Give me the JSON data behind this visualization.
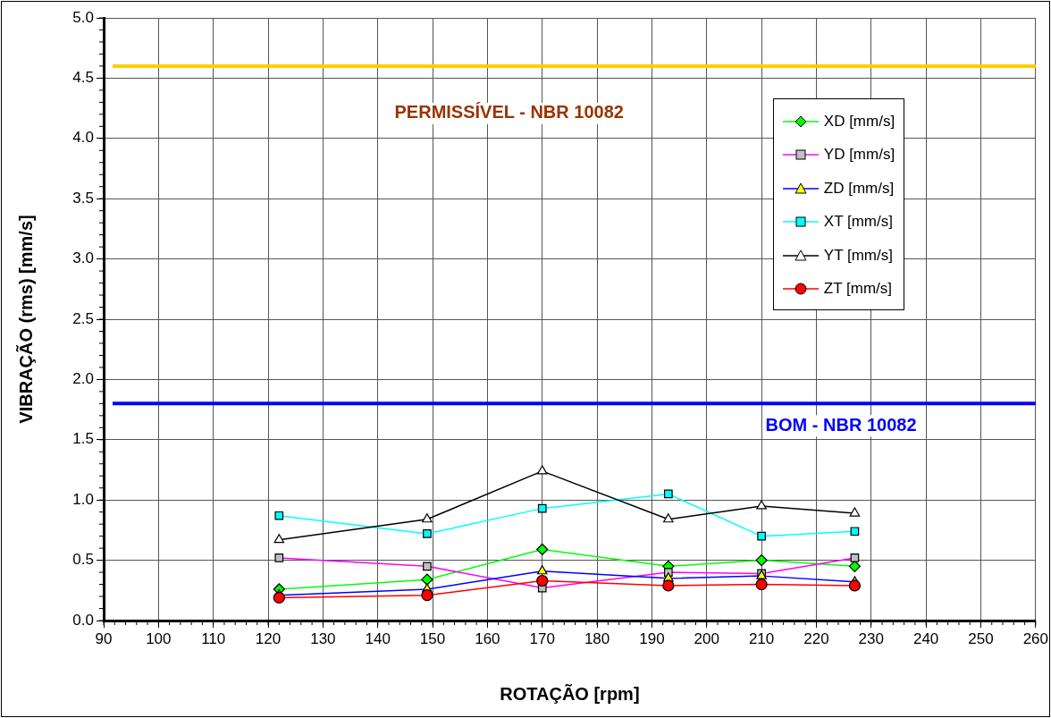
{
  "chart_data": {
    "type": "line",
    "xlabel": "ROTAÇÃO [rpm]",
    "ylabel": "VIBRAÇÃO (rms) [mm/s]",
    "x": [
      122,
      149,
      170,
      193,
      210,
      227
    ],
    "series": [
      {
        "name": "XD [mm/s]",
        "color": "#00ff00",
        "marker": "diamond",
        "colors": [
          "#00ff00",
          "#00ff00",
          "#00ff00",
          "#00ff00",
          "#00ff00",
          "#00ff00"
        ],
        "values": [
          0.26,
          0.34,
          0.59,
          0.45,
          0.5,
          0.45
        ]
      },
      {
        "name": "YD [mm/s]",
        "color": "#ff00ff",
        "marker": "square",
        "colors": [
          "#c0c0c0",
          "#c0c0c0",
          "#c0c0c0",
          "#c0c0c0",
          "#c0c0c0",
          "#c0c0c0"
        ],
        "values": [
          0.52,
          0.45,
          0.27,
          0.4,
          0.39,
          0.52
        ]
      },
      {
        "name": "ZD [mm/s]",
        "color": "#0000ff",
        "marker": "triangle",
        "colors": [
          "#ffff00",
          "#ffff00",
          "#ffff00",
          "#ffff00",
          "#ffff00",
          "#ffff00"
        ],
        "values": [
          0.21,
          0.26,
          0.41,
          0.35,
          0.37,
          0.32
        ]
      },
      {
        "name": "XT [mm/s]",
        "color": "#00ffff",
        "marker": "square",
        "colors": [
          "#00ffff",
          "#00ffff",
          "#00ffff",
          "#00ffff",
          "#00ffff",
          "#00ffff"
        ],
        "values": [
          0.87,
          0.72,
          0.93,
          1.05,
          0.7,
          0.74
        ]
      },
      {
        "name": "YT [mm/s]",
        "color": "#000000",
        "marker": "triangle",
        "colors": [
          "#ffffff",
          "#ffffff",
          "#ffffff",
          "#ffffff",
          "#ffffff",
          "#ffffff"
        ],
        "values": [
          0.67,
          0.84,
          1.24,
          0.84,
          0.95,
          0.89
        ]
      },
      {
        "name": "ZT [mm/s]",
        "color": "#ff0000",
        "marker": "circle",
        "colors": [
          "#ff0000",
          "#ff0000",
          "#ff0000",
          "#ff0000",
          "#ff0000",
          "#ff0000"
        ],
        "values": [
          0.19,
          0.21,
          0.33,
          0.29,
          0.3,
          0.29
        ]
      }
    ],
    "ref_lines": [
      {
        "axis": "y",
        "value": 4.6,
        "label": "PERMISSÍVEL - NBR 10082",
        "color": "#ffcc00"
      },
      {
        "axis": "y",
        "value": 1.8,
        "label": "BOM - NBR 10082",
        "color": "#0000ff"
      }
    ],
    "xlim": [
      90,
      260
    ],
    "xticks": [
      90,
      100,
      110,
      120,
      130,
      140,
      150,
      160,
      170,
      180,
      190,
      200,
      210,
      220,
      230,
      240,
      250,
      260
    ],
    "ylim": [
      0,
      5
    ],
    "yticks": [
      {
        "value": 0,
        "label": "0.0"
      },
      {
        "value": 0.5,
        "label": "0.5"
      },
      {
        "value": 1,
        "label": "1.0"
      },
      {
        "value": 1.5,
        "label": "1.5"
      },
      {
        "value": 2,
        "label": "2.0"
      },
      {
        "value": 2.5,
        "label": "2.5"
      },
      {
        "value": 3,
        "label": "3.0"
      },
      {
        "value": 3.5,
        "label": "3.5"
      },
      {
        "value": 4,
        "label": "4.0"
      },
      {
        "value": 4.5,
        "label": "4.5"
      },
      {
        "value": 5,
        "label": "5.0"
      }
    ],
    "grid": true,
    "legend": "top right"
  }
}
